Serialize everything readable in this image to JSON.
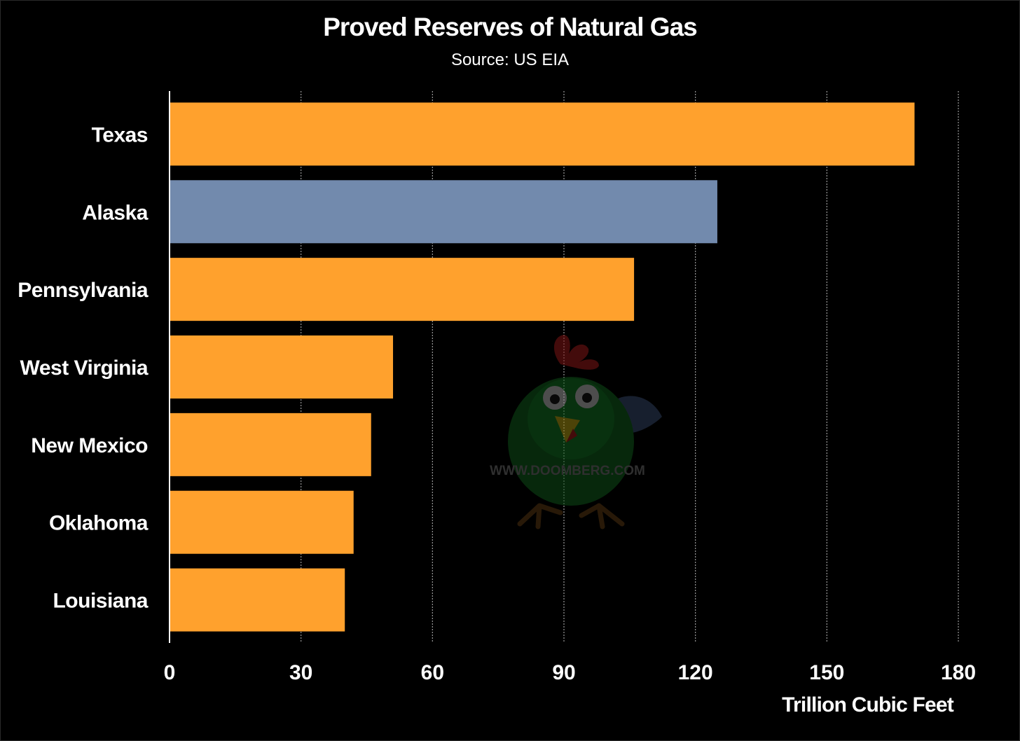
{
  "chart_data": {
    "type": "bar",
    "orientation": "horizontal",
    "title": "Proved Reserves of Natural Gas",
    "subtitle": "Source: US EIA",
    "xlabel": "Trillion Cubic Feet",
    "ylabel": "",
    "xlim": [
      0,
      180
    ],
    "xticks": [
      0,
      30,
      60,
      90,
      120,
      150,
      180
    ],
    "grid": "vertical dotted",
    "categories": [
      "Texas",
      "Alaska",
      "Pennsylvania",
      "West Virginia",
      "New Mexico",
      "Oklahoma",
      "Louisiana"
    ],
    "values": [
      170,
      125,
      106,
      51,
      46,
      42,
      40
    ],
    "colors": [
      "#FFA12D",
      "#728AAD",
      "#FFA12D",
      "#FFA12D",
      "#FFA12D",
      "#FFA12D",
      "#FFA12D"
    ]
  },
  "watermark": {
    "text": "WWW.DOOMBERG.COM",
    "icon": "chicken-mascot-icon"
  },
  "colors": {
    "background": "#000000",
    "highlight_bar": "#728AAD",
    "default_bar": "#FFA12D",
    "text": "#FFFFFF"
  }
}
